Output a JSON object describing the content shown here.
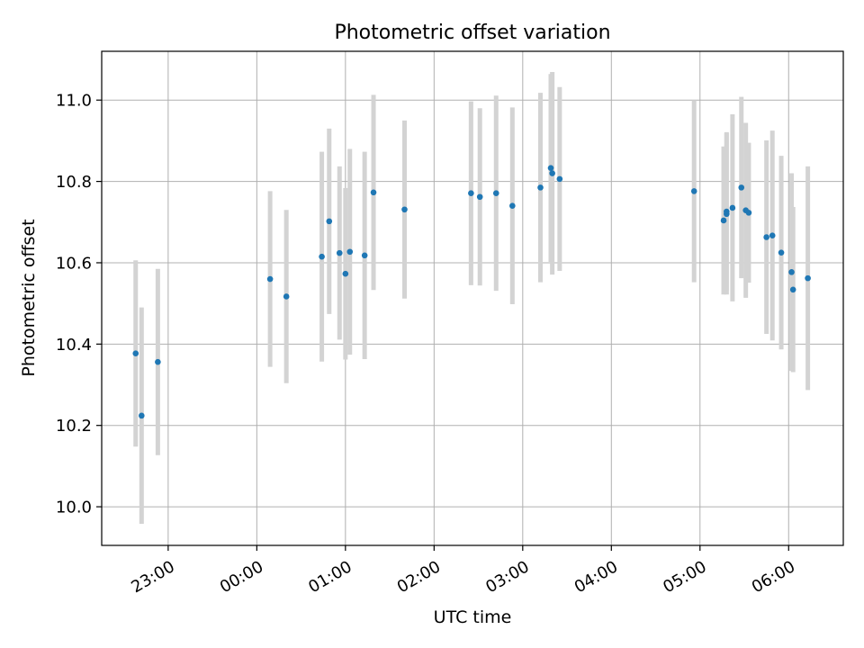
{
  "chart_data": {
    "type": "scatter",
    "title": "Photometric offset variation",
    "xlabel": "UTC time",
    "ylabel": "Photometric offset",
    "grid": true,
    "x_unit": "UTC time (HH:MM, day 1 = 22:00–24:00, day 2 = 00:00–06:30)",
    "xlim": [
      "22:15",
      "06:37"
    ],
    "ylim": [
      9.905,
      11.12
    ],
    "x_ticks": [
      "23:00",
      "00:00",
      "01:00",
      "02:00",
      "03:00",
      "04:00",
      "05:00",
      "06:00"
    ],
    "y_ticks": [
      "10.0",
      "10.2",
      "10.4",
      "10.6",
      "10.8",
      "11.0"
    ],
    "series": [
      {
        "marker_color": "#1f77b4",
        "errorbar_color": "#d3d3d3",
        "points": [
          {
            "x": "22:38",
            "y": 10.377,
            "yerr": 0.229
          },
          {
            "x": "22:42",
            "y": 10.224,
            "yerr": 0.266
          },
          {
            "x": "22:53",
            "y": 10.356,
            "yerr": 0.229
          },
          {
            "x": "00:09",
            "y": 10.56,
            "yerr": 0.216
          },
          {
            "x": "00:20",
            "y": 10.517,
            "yerr": 0.213
          },
          {
            "x": "00:44",
            "y": 10.615,
            "yerr": 0.258
          },
          {
            "x": "00:49",
            "y": 10.702,
            "yerr": 0.228
          },
          {
            "x": "00:56",
            "y": 10.624,
            "yerr": 0.213
          },
          {
            "x": "01:00",
            "y": 10.573,
            "yerr": 0.211
          },
          {
            "x": "01:03",
            "y": 10.627,
            "yerr": 0.253
          },
          {
            "x": "01:13",
            "y": 10.618,
            "yerr": 0.255
          },
          {
            "x": "01:19",
            "y": 10.773,
            "yerr": 0.24
          },
          {
            "x": "01:40",
            "y": 10.731,
            "yerr": 0.219
          },
          {
            "x": "02:25",
            "y": 10.771,
            "yerr": 0.226
          },
          {
            "x": "02:31",
            "y": 10.762,
            "yerr": 0.218
          },
          {
            "x": "02:42",
            "y": 10.771,
            "yerr": 0.24
          },
          {
            "x": "02:53",
            "y": 10.74,
            "yerr": 0.242
          },
          {
            "x": "03:12",
            "y": 10.785,
            "yerr": 0.233
          },
          {
            "x": "03:19",
            "y": 10.833,
            "yerr": 0.231
          },
          {
            "x": "03:20",
            "y": 10.82,
            "yerr": 0.249
          },
          {
            "x": "03:25",
            "y": 10.806,
            "yerr": 0.226
          },
          {
            "x": "04:56",
            "y": 10.776,
            "yerr": 0.224
          },
          {
            "x": "05:16",
            "y": 10.704,
            "yerr": 0.182
          },
          {
            "x": "05:18",
            "y": 10.726,
            "yerr": 0.195
          },
          {
            "x": "05:18",
            "y": 10.72,
            "yerr": 0.198
          },
          {
            "x": "05:22",
            "y": 10.735,
            "yerr": 0.23
          },
          {
            "x": "05:28",
            "y": 10.785,
            "yerr": 0.223
          },
          {
            "x": "05:31",
            "y": 10.729,
            "yerr": 0.215
          },
          {
            "x": "05:33",
            "y": 10.723,
            "yerr": 0.172
          },
          {
            "x": "05:45",
            "y": 10.663,
            "yerr": 0.238
          },
          {
            "x": "05:49",
            "y": 10.667,
            "yerr": 0.258
          },
          {
            "x": "05:55",
            "y": 10.625,
            "yerr": 0.238
          },
          {
            "x": "06:02",
            "y": 10.577,
            "yerr": 0.243
          },
          {
            "x": "06:03",
            "y": 10.534,
            "yerr": 0.203
          },
          {
            "x": "06:13",
            "y": 10.562,
            "yerr": 0.275
          }
        ]
      }
    ]
  }
}
